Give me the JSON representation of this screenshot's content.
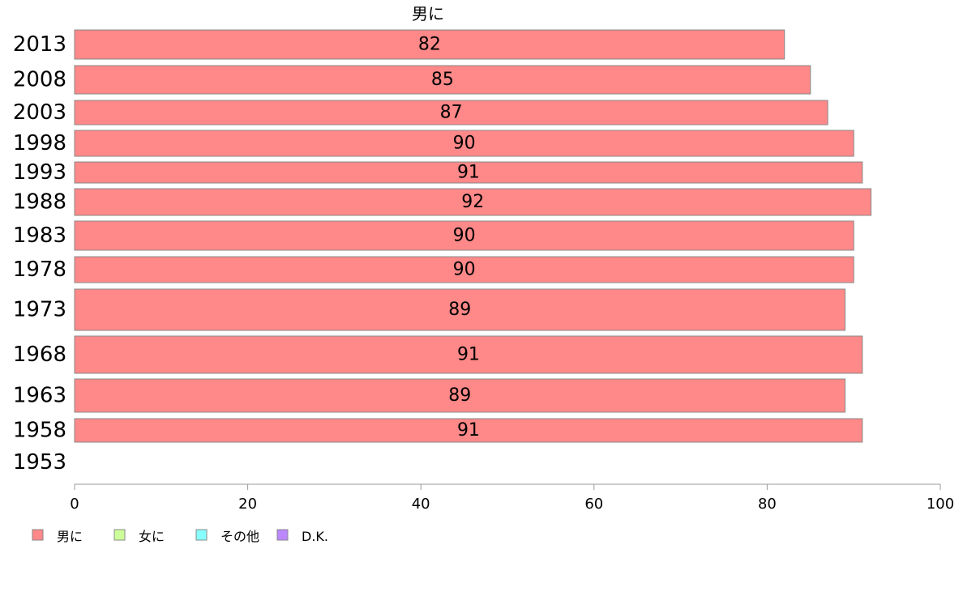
{
  "chart_data": {
    "type": "bar",
    "orientation": "horizontal",
    "title": "男に",
    "categories": [
      "2013",
      "2008",
      "2003",
      "1998",
      "1993",
      "1988",
      "1983",
      "1978",
      "1973",
      "1968",
      "1963",
      "1958",
      "1953"
    ],
    "series": [
      {
        "name": "男に",
        "color": "#ff8888",
        "values": [
          82,
          85,
          87,
          90,
          91,
          92,
          90,
          90,
          89,
          91,
          89,
          91,
          null
        ],
        "data_labels": [
          "82",
          "85",
          "87",
          "90",
          "91",
          "92",
          "90",
          "90",
          "89",
          "91",
          "89",
          "91",
          ""
        ]
      }
    ],
    "xlim": [
      0,
      100
    ],
    "x_ticks": [
      "0",
      "20",
      "40",
      "60",
      "80",
      "100"
    ],
    "grid": false,
    "legend": {
      "placement": "bottom-left",
      "items": [
        {
          "label": "男に",
          "color": "#ff8888"
        },
        {
          "label": "女に",
          "color": "#ccff99"
        },
        {
          "label": "その他",
          "color": "#88ffff"
        },
        {
          "label": "D.K.",
          "color": "#bb88ff"
        }
      ]
    }
  }
}
